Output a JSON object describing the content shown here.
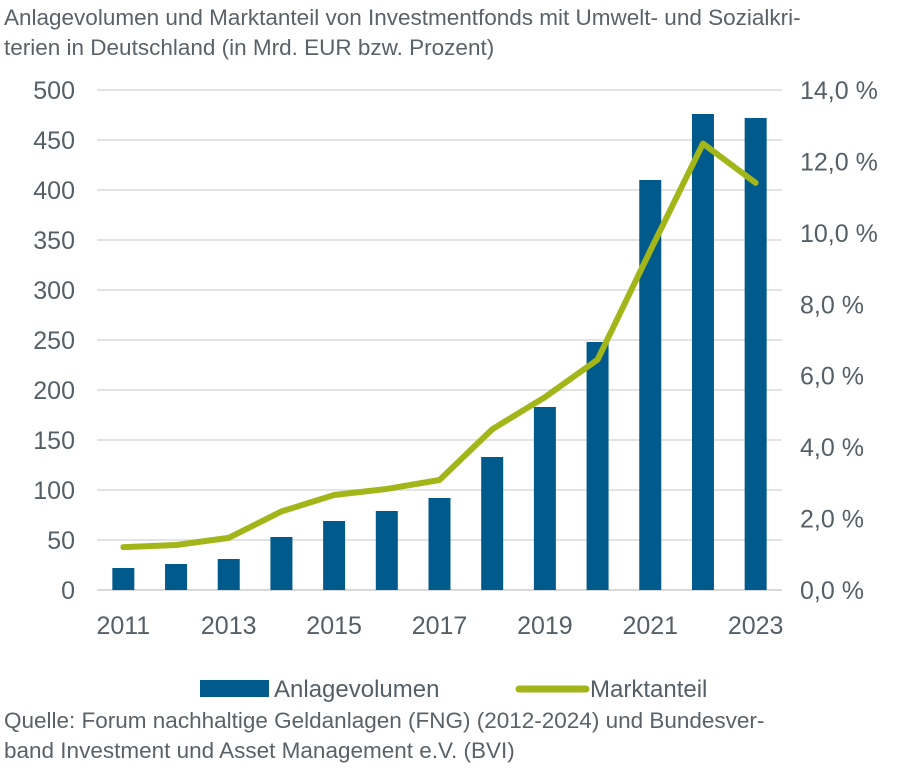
{
  "chart_data": {
    "type": "bar",
    "title": "Anlagevolumen und Marktanteil von Investmentfonds mit Umwelt- und Sozialkriterien in Deutschland (in Mrd. EUR bzw. Prozent)",
    "title_display": "Anlagevolumen und Marktanteil von Investmentfonds mit Umwelt- und Sozialkri-terien in Deutschland (in Mrd. EUR bzw. Prozent)",
    "categories": [
      2011,
      2012,
      2013,
      2014,
      2015,
      2016,
      2017,
      2018,
      2019,
      2020,
      2021,
      2022,
      2023
    ],
    "x_tick_labels": [
      "2011",
      "2013",
      "2015",
      "2017",
      "2019",
      "2021",
      "2023"
    ],
    "series": [
      {
        "name": "Anlagevolumen",
        "type": "bar",
        "axis": "left",
        "color": "#005a8c",
        "values": [
          22,
          26,
          31,
          53,
          69,
          79,
          92,
          133,
          183,
          248,
          410,
          476,
          472
        ]
      },
      {
        "name": "Marktanteil",
        "type": "line",
        "axis": "right",
        "color": "#a3b619",
        "values": [
          1.2,
          1.26,
          1.46,
          2.2,
          2.66,
          2.83,
          3.08,
          4.5,
          5.4,
          6.45,
          9.5,
          12.5,
          11.4
        ]
      }
    ],
    "y_left": {
      "label": "Mrd. EUR",
      "range": [
        0,
        500
      ],
      "ticks": [
        "0",
        "50",
        "100",
        "150",
        "200",
        "250",
        "300",
        "350",
        "400",
        "450",
        "500"
      ]
    },
    "y_right": {
      "label": "Prozent",
      "range": [
        0,
        14
      ],
      "ticks": [
        "0,0 %",
        "2,0 %",
        "4,0 %",
        "6,0 %",
        "8,0 %",
        "10,0 %",
        "12,0 %",
        "14,0 %"
      ]
    },
    "grid": true,
    "legend": {
      "position": "bottom",
      "items": [
        {
          "label": "Anlagevolumen",
          "color": "#005a8c"
        },
        {
          "label": "Marktanteil",
          "color": "#a3b619"
        }
      ]
    },
    "source": "Quelle: Forum nachhaltige Geldanlagen (FNG) (2012-2024) und Bundesverband Investment und Asset Management e.V. (BVI)",
    "source_display": "Quelle: Forum nachhaltige Geldanlagen (FNG) (2012-2024) und Bundesver-band Investment und Asset Management e.V. (BVI)"
  }
}
